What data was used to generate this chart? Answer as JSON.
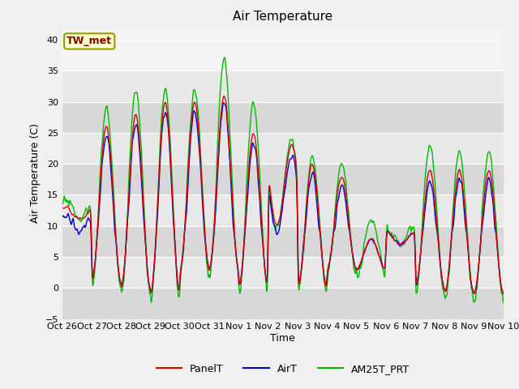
{
  "title": "Air Temperature",
  "xlabel": "Time",
  "ylabel": "Air Temperature (C)",
  "ylim": [
    -5,
    42
  ],
  "yticks": [
    -5,
    0,
    5,
    10,
    15,
    20,
    25,
    30,
    35,
    40
  ],
  "annotation": "TW_met",
  "annotation_color": "#8B0000",
  "annotation_bg": "#FFFFCC",
  "annotation_border": "#999900",
  "line_colors": {
    "PanelT": "#DD0000",
    "AirT": "#0000CC",
    "AM25T_PRT": "#00BB00"
  },
  "legend_labels": [
    "PanelT",
    "AirT",
    "AM25T_PRT"
  ],
  "bg_light": "#DCDCDC",
  "bg_dark": "#C8C8C8",
  "xtick_labels": [
    "Oct 26",
    "Oct 27",
    "Oct 28",
    "Oct 29",
    "Oct 30",
    "Oct 31",
    "Nov 1",
    "Nov 2",
    "Nov 3",
    "Nov 4",
    "Nov 5",
    "Nov 6",
    "Nov 7",
    "Nov 8",
    "Nov 9",
    "Nov 10"
  ],
  "num_days": 15,
  "points_per_day": 96,
  "day_pattern": [
    {
      "base": 11,
      "amp": 2,
      "amp_g": 4,
      "phase": 0.6
    },
    {
      "base": 1,
      "amp": 25,
      "amp_g": 28,
      "phase": 0.0
    },
    {
      "base": 0,
      "amp": 28,
      "amp_g": 32,
      "phase": 0.0
    },
    {
      "base": -1,
      "amp": 31,
      "amp_g": 33,
      "phase": 0.0
    },
    {
      "base": 3,
      "amp": 27,
      "amp_g": 29,
      "phase": 0.0
    },
    {
      "base": 3,
      "amp": 28,
      "amp_g": 34,
      "phase": 0.0
    },
    {
      "base": 0,
      "amp": 25,
      "amp_g": 30,
      "phase": 0.0
    },
    {
      "base": 10,
      "amp": 13,
      "amp_g": 14,
      "phase": 0.3
    },
    {
      "base": 0,
      "amp": 20,
      "amp_g": 21,
      "phase": 0.0
    },
    {
      "base": 3,
      "amp": 15,
      "amp_g": 17,
      "phase": 0.0
    },
    {
      "base": 3,
      "amp": 5,
      "amp_g": 8,
      "phase": 0.0
    },
    {
      "base": 7,
      "amp": 2,
      "amp_g": 4,
      "phase": 0.5
    },
    {
      "base": 0,
      "amp": 19,
      "amp_g": 23,
      "phase": 0.0
    },
    {
      "base": -1,
      "amp": 20,
      "amp_g": 23,
      "phase": 0.0
    },
    {
      "base": -1,
      "amp": 20,
      "amp_g": 23,
      "phase": 0.0
    }
  ]
}
